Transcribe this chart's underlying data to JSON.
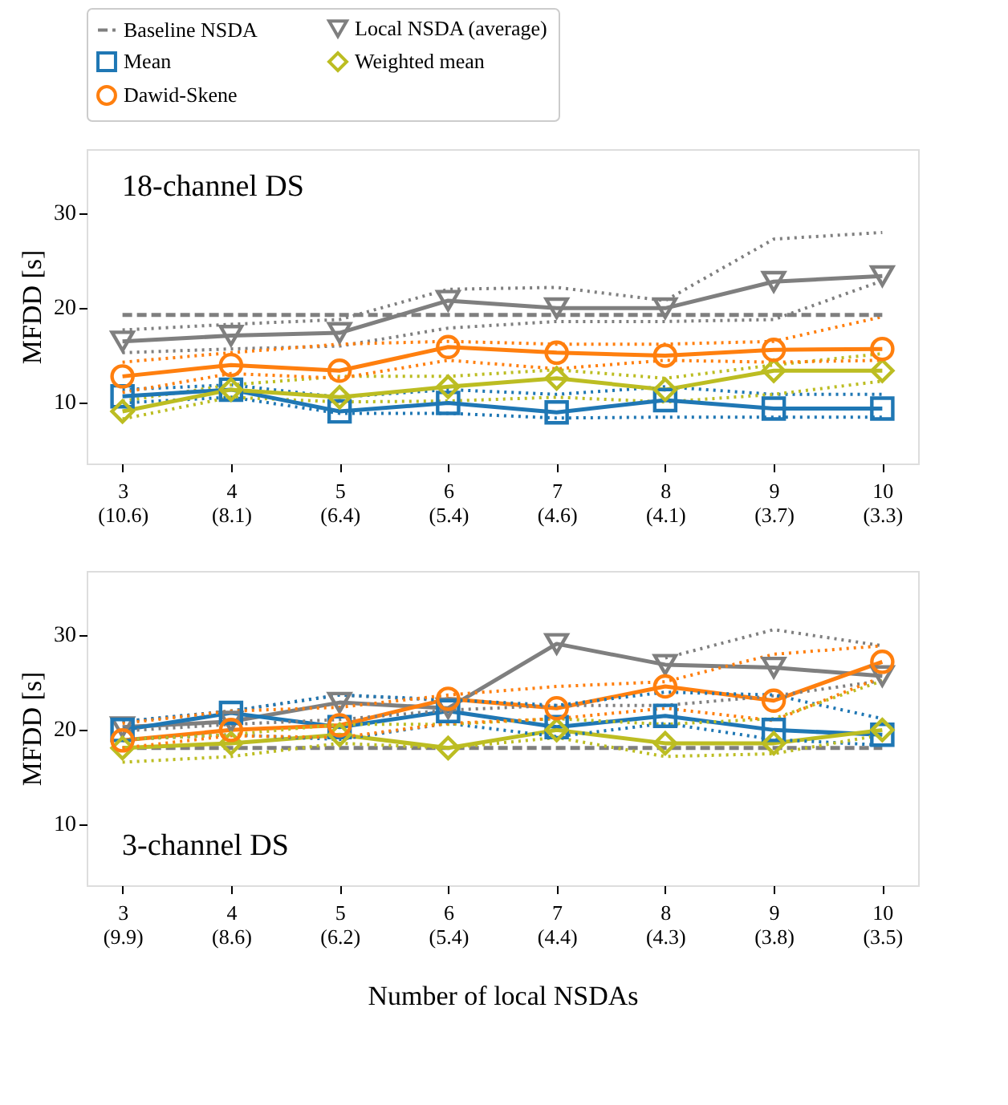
{
  "chart_data": [
    {
      "type": "line",
      "annotations": [
        "18-channel DS"
      ],
      "ylabel": "MFDD [s]",
      "categories": [
        "3\n(10.6)",
        "4\n(8.1)",
        "5\n(6.4)",
        "6\n(5.4)",
        "7\n(4.6)",
        "8\n(4.1)",
        "9\n(3.7)",
        "10\n(3.3)"
      ],
      "ylim": [
        3.5,
        36.7
      ],
      "yticks": [
        10,
        20,
        30
      ],
      "grid": false,
      "legend": "top",
      "series": [
        {
          "name": "Baseline NSDA",
          "color": "#7f7f7f",
          "line_style": "dashed",
          "marker": "none",
          "values": [
            19.2,
            19.2,
            19.2,
            19.2,
            19.2,
            19.2,
            19.2,
            19.2
          ]
        },
        {
          "name": "Local NSDA (average)",
          "color": "#7f7f7f",
          "line_style": "solid",
          "marker": "triangle",
          "values": [
            16.4,
            17.0,
            17.3,
            20.7,
            19.9,
            19.9,
            22.7,
            23.3
          ]
        },
        {
          "name": "Mean",
          "color": "#1f77b4",
          "line_style": "solid",
          "marker": "square",
          "values": [
            10.6,
            11.3,
            9.0,
            9.9,
            8.9,
            10.2,
            9.3,
            9.3
          ]
        },
        {
          "name": "Weighted mean",
          "color": "#bcbd22",
          "line_style": "solid",
          "marker": "diamond",
          "values": [
            9.0,
            11.3,
            10.5,
            11.6,
            12.5,
            11.3,
            13.3,
            13.3
          ]
        },
        {
          "name": "Dawid-Skene",
          "color": "#ff7f0e",
          "line_style": "solid",
          "marker": "circle",
          "values": [
            12.7,
            13.9,
            13.3,
            15.8,
            15.2,
            14.9,
            15.5,
            15.6
          ]
        },
        {
          "color": "#7f7f7f",
          "line_style": "dotted",
          "marker": "none",
          "values": [
            15.2,
            15.6,
            15.9,
            17.8,
            18.5,
            18.5,
            18.7,
            22.8
          ]
        },
        {
          "color": "#7f7f7f",
          "line_style": "dotted",
          "marker": "none",
          "values": [
            17.6,
            18.2,
            18.7,
            21.9,
            22.1,
            20.7,
            27.2,
            27.9
          ]
        },
        {
          "color": "#1f77b4",
          "line_style": "dotted",
          "marker": "none",
          "values": [
            9.9,
            10.5,
            8.8,
            8.8,
            8.3,
            8.4,
            8.4,
            8.4
          ]
        },
        {
          "color": "#1f77b4",
          "line_style": "dotted",
          "marker": "none",
          "values": [
            11.3,
            11.8,
            10.5,
            11.3,
            10.8,
            11.6,
            10.8,
            10.8
          ]
        },
        {
          "color": "#bcbd22",
          "line_style": "dotted",
          "marker": "none",
          "values": [
            8.2,
            10.5,
            10.0,
            10.1,
            10.5,
            10.0,
            10.8,
            12.2
          ]
        },
        {
          "color": "#bcbd22",
          "line_style": "dotted",
          "marker": "none",
          "values": [
            10.1,
            11.8,
            12.7,
            12.7,
            13.4,
            12.5,
            13.9,
            15.1
          ]
        },
        {
          "color": "#ff7f0e",
          "line_style": "dotted",
          "marker": "none",
          "values": [
            11.0,
            13.0,
            12.5,
            14.4,
            13.5,
            14.4,
            14.2,
            14.4
          ]
        },
        {
          "color": "#ff7f0e",
          "line_style": "dotted",
          "marker": "none",
          "values": [
            14.2,
            15.2,
            16.1,
            16.4,
            16.1,
            16.1,
            16.4,
            19.0
          ]
        }
      ]
    },
    {
      "type": "line",
      "annotations": [
        "3-channel DS"
      ],
      "ylabel": "MFDD [s]",
      "xlabel": "Number of local NSDAs",
      "categories": [
        "3\n(9.9)",
        "4\n(8.6)",
        "5\n(6.2)",
        "6\n(5.4)",
        "7\n(4.4)",
        "8\n(4.3)",
        "9\n(3.8)",
        "10\n(3.5)"
      ],
      "ylim": [
        3.5,
        36.7
      ],
      "yticks": [
        10,
        20,
        30
      ],
      "grid": false,
      "legend": false,
      "series": [
        {
          "color": "#7f7f7f",
          "line_style": "dashed",
          "marker": "none",
          "values": [
            18.0,
            18.0,
            18.0,
            18.0,
            18.0,
            18.0,
            18.0,
            18.0
          ]
        },
        {
          "color": "#7f7f7f",
          "line_style": "solid",
          "marker": "triangle",
          "values": [
            20.2,
            20.8,
            22.8,
            22.2,
            29.0,
            26.8,
            26.5,
            25.6
          ]
        },
        {
          "color": "#1f77b4",
          "line_style": "solid",
          "marker": "square",
          "values": [
            19.9,
            21.7,
            20.2,
            21.9,
            20.2,
            21.4,
            19.9,
            19.4
          ]
        },
        {
          "color": "#bcbd22",
          "line_style": "solid",
          "marker": "diamond",
          "values": [
            18.0,
            18.5,
            19.4,
            18.0,
            19.9,
            18.5,
            18.5,
            19.9
          ]
        },
        {
          "color": "#ff7f0e",
          "line_style": "solid",
          "marker": "circle",
          "values": [
            18.8,
            19.9,
            20.4,
            23.2,
            22.2,
            24.5,
            23.0,
            27.1
          ]
        },
        {
          "color": "#7f7f7f",
          "line_style": "dotted",
          "marker": "none",
          "values": [
            19.8,
            20.5,
            21.0,
            22.0,
            22.5,
            22.5,
            23.5,
            25.1
          ]
        },
        {
          "color": "#7f7f7f",
          "line_style": "dotted",
          "marker": "none",
          "values": [
            20.8,
            21.9,
            23.6,
            23.0,
            null,
            27.5,
            30.5,
            28.8
          ]
        },
        {
          "color": "#1f77b4",
          "line_style": "dotted",
          "marker": "none",
          "values": [
            18.9,
            19.4,
            18.9,
            20.6,
            19.2,
            20.6,
            18.9,
            18.3
          ]
        },
        {
          "color": "#1f77b4",
          "line_style": "dotted",
          "marker": "none",
          "values": [
            20.8,
            21.9,
            23.6,
            23.1,
            22.5,
            23.9,
            23.6,
            21.1
          ]
        },
        {
          "color": "#bcbd22",
          "line_style": "dotted",
          "marker": "none",
          "values": [
            16.5,
            17.1,
            18.5,
            18.0,
            19.1,
            17.1,
            17.4,
            19.4
          ]
        },
        {
          "color": "#bcbd22",
          "line_style": "dotted",
          "marker": "none",
          "values": [
            18.9,
            19.4,
            20.5,
            20.5,
            21.1,
            20.5,
            21.1,
            25.1
          ]
        },
        {
          "color": "#ff7f0e",
          "line_style": "dotted",
          "marker": "none",
          "values": [
            18.0,
            19.3,
            19.1,
            20.6,
            21.1,
            22.2,
            20.9,
            25.5
          ]
        },
        {
          "color": "#ff7f0e",
          "line_style": "dotted",
          "marker": "none",
          "values": [
            20.6,
            21.9,
            22.3,
            23.6,
            24.5,
            25.0,
            27.9,
            28.8
          ]
        }
      ]
    }
  ]
}
